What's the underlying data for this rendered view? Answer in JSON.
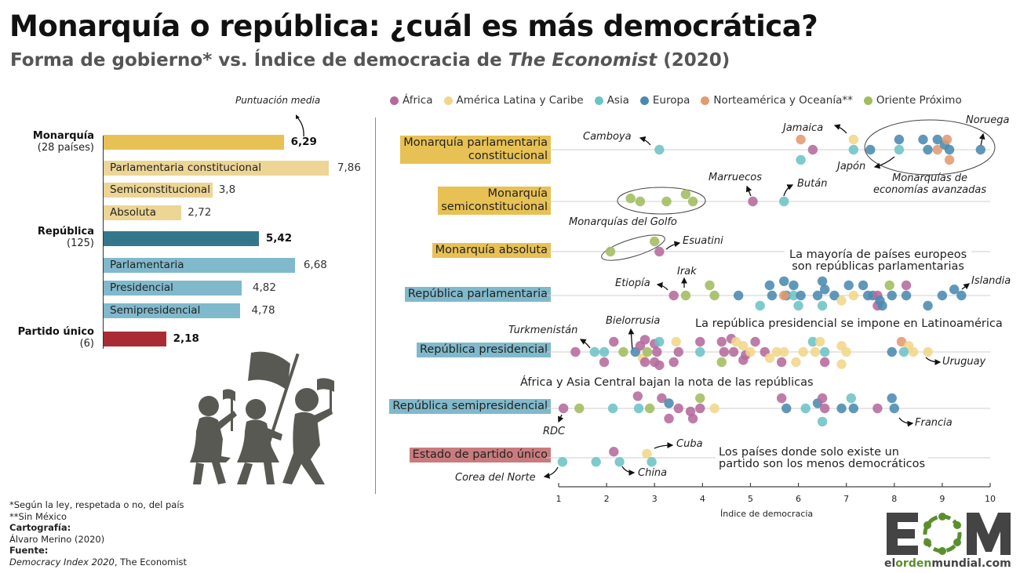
{
  "title": "Monarquía o república: ¿cuál es más democrática?",
  "subtitle": {
    "prefix": "Forma de gobierno* vs. Índice de democracia de ",
    "italic": "The Economist",
    "suffix": " (2020)"
  },
  "colors": {
    "africa": "#b56a9c",
    "latam": "#f1d68a",
    "asia": "#6cc3c5",
    "europa": "#4a8ab0",
    "norteamerica": "#e29a70",
    "oriente": "#a2bc5e",
    "monarchy_main": "#e8c154",
    "monarchy_sub": "#ecd595",
    "republic_main": "#35778a",
    "republic_sub": "#80b9cb",
    "single_party": "#a92c34",
    "single_party_label": "#c97b7d"
  },
  "bar_panel": {
    "annotation": "Puntuación media",
    "groups": [
      {
        "name": "Monarquía",
        "count": "(28 países)"
      },
      {
        "name": "República",
        "count": "(125)"
      },
      {
        "name": "Partido único",
        "count": "(6)"
      }
    ]
  },
  "legend": [
    {
      "key": "africa",
      "label": "África"
    },
    {
      "key": "latam",
      "label": "América Latina y Caribe"
    },
    {
      "key": "asia",
      "label": "Asia"
    },
    {
      "key": "europa",
      "label": "Europa"
    },
    {
      "key": "norteamerica",
      "label": "Norteamérica y Oceanía**"
    },
    {
      "key": "oriente",
      "label": "Oriente Próximo"
    }
  ],
  "row_labels": [
    {
      "line1": "Monarquía parlamentaria",
      "line2": "constitucional"
    },
    {
      "line1": "Monarquía",
      "line2": "semiconstitucional"
    },
    {
      "line1": "Monarquía absoluta",
      "line2": ""
    },
    {
      "line1": "República parlamentaria",
      "line2": ""
    },
    {
      "line1": "República presidencial",
      "line2": ""
    },
    {
      "line1": "República semipresidencial",
      "line2": ""
    },
    {
      "line1": "Estado de partido único",
      "line2": ""
    }
  ],
  "notes": {
    "europe": [
      "La mayoría de países europeos",
      "son repúblicas parlamentarias"
    ],
    "latam": "La república presidencial se impone en Latinoamérica",
    "africa_asia": "África y Asia Central bajan la nota de las repúblicas",
    "single": [
      "Los países donde solo existe un",
      "partido son los menos democráticos"
    ]
  },
  "annotations": {
    "camboya": "Camboya",
    "jamaica": "Jamaica",
    "noruega": "Noruega",
    "japon": "Japón",
    "avanzadas": [
      "Monarquías de",
      "economías avanzadas"
    ],
    "marruecos": "Marruecos",
    "butan": "Bután",
    "golfo": "Monarquías del Golfo",
    "esuatini": "Esuatini",
    "etiopia": "Etiopía",
    "irak": "Irak",
    "islandia": "Islandia",
    "turkmenistan": "Turkmenistán",
    "bielorrusia": "Bielorrusia",
    "uruguay": "Uruguay",
    "rdc": "RDC",
    "francia": "Francia",
    "cuba": "Cuba",
    "china": "China",
    "corea": "Corea del Norte"
  },
  "footer": {
    "note1": "*Según la ley, respetada o no, del país",
    "note2": "**Sin México",
    "carto_label": "Cartografía:",
    "carto_value": "Álvaro Merino (2020)",
    "source_label": "Fuente:",
    "source_italic": "Democracy Index 2020",
    "source_rest": ", The Economist"
  },
  "logo": {
    "letters": [
      "E",
      "M"
    ],
    "url_prefix": "el",
    "url_mid": "orden",
    "url_suffix": "mundial.com"
  },
  "chart_data": [
    {
      "type": "bar",
      "title": "Puntuación media",
      "categories": [
        "Monarquía",
        "Parlamentaria constitucional",
        "Semiconstitucional",
        "Absoluta",
        "República",
        "Parlamentaria",
        "Presidencial",
        "Semipresidencial",
        "Partido único"
      ],
      "values": [
        6.29,
        7.86,
        3.8,
        2.72,
        5.42,
        6.68,
        4.82,
        4.78,
        2.18
      ],
      "value_labels": [
        "6,29",
        "7,86",
        "3,8",
        "2,72",
        "5,42",
        "6,68",
        "4,82",
        "4,78",
        "2,18"
      ],
      "kinds": [
        "main",
        "sub",
        "sub",
        "sub",
        "main",
        "sub",
        "sub",
        "sub",
        "main"
      ],
      "families": [
        "monarchy",
        "monarchy",
        "monarchy",
        "monarchy",
        "republic",
        "republic",
        "republic",
        "republic",
        "single"
      ],
      "xlim": [
        0,
        10
      ]
    },
    {
      "type": "scatter",
      "title": "Índice de democracia por forma de gobierno",
      "xlabel": "Índice de democracia",
      "xlim": [
        1,
        10
      ],
      "xticks": [
        1,
        2,
        3,
        4,
        5,
        6,
        7,
        8,
        9,
        10
      ],
      "rows": [
        {
          "name": "Monarquía parlamentaria constitucional",
          "points": [
            [
              3.1,
              "asia",
              0
            ],
            [
              6.05,
              "norteamerica",
              -1
            ],
            [
              6.3,
              "africa",
              0
            ],
            [
              6.05,
              "asia",
              1
            ],
            [
              7.15,
              "latam",
              -1
            ],
            [
              7.15,
              "asia",
              0
            ],
            [
              7.5,
              "europa",
              0
            ],
            [
              8.1,
              "asia",
              0
            ],
            [
              8.1,
              "europa",
              -1
            ],
            [
              8.6,
              "europa",
              -1
            ],
            [
              8.7,
              "europa",
              0
            ],
            [
              8.9,
              "europa",
              -1
            ],
            [
              8.9,
              "norteamerica",
              0
            ],
            [
              9.05,
              "europa",
              -0.5
            ],
            [
              9.1,
              "norteamerica",
              -1
            ],
            [
              9.15,
              "europa",
              0
            ],
            [
              9.15,
              "norteamerica",
              1
            ],
            [
              9.8,
              "europa",
              0
            ]
          ]
        },
        {
          "name": "Monarquía semiconstitucional",
          "points": [
            [
              2.5,
              "oriente",
              -0.3
            ],
            [
              2.7,
              "oriente",
              0
            ],
            [
              3.25,
              "oriente",
              0
            ],
            [
              3.65,
              "oriente",
              -0.7
            ],
            [
              3.8,
              "oriente",
              0
            ],
            [
              5.05,
              "africa",
              0
            ],
            [
              5.7,
              "asia",
              0
            ]
          ]
        },
        {
          "name": "Monarquía absoluta",
          "points": [
            [
              2.08,
              "oriente",
              0
            ],
            [
              3.0,
              "oriente",
              -1
            ],
            [
              3.1,
              "africa",
              0
            ]
          ]
        },
        {
          "name": "República parlamentaria",
          "points": [
            [
              3.4,
              "africa",
              0
            ],
            [
              3.65,
              "oriente",
              0
            ],
            [
              4.15,
              "oriente",
              -1
            ],
            [
              4.25,
              "oriente",
              0
            ],
            [
              4.75,
              "europa",
              0
            ],
            [
              5.2,
              "asia",
              1
            ],
            [
              5.4,
              "europa",
              -1
            ],
            [
              5.45,
              "europa",
              0
            ],
            [
              5.7,
              "europa",
              -1.4
            ],
            [
              5.75,
              "europa",
              0
            ],
            [
              5.7,
              "norteamerica",
              0
            ],
            [
              5.9,
              "europa",
              -1
            ],
            [
              5.9,
              "asia",
              0
            ],
            [
              6.0,
              "asia",
              1
            ],
            [
              6.05,
              "europa",
              0
            ],
            [
              6.4,
              "europa",
              0
            ],
            [
              6.5,
              "europa",
              -1.4
            ],
            [
              6.55,
              "europa",
              -0.6
            ],
            [
              6.5,
              "asia",
              1
            ],
            [
              6.75,
              "europa",
              0
            ],
            [
              6.9,
              "latam",
              0.5
            ],
            [
              7.15,
              "latam",
              0
            ],
            [
              7.05,
              "europa",
              -1
            ],
            [
              7.35,
              "europa",
              -1
            ],
            [
              7.45,
              "europa",
              0
            ],
            [
              7.65,
              "africa",
              1
            ],
            [
              7.55,
              "europa",
              0
            ],
            [
              7.65,
              "africa",
              0
            ],
            [
              7.7,
              "europa",
              0.5
            ],
            [
              7.75,
              "europa",
              1
            ],
            [
              7.9,
              "oriente",
              -1
            ],
            [
              7.95,
              "europa",
              0
            ],
            [
              8.25,
              "africa",
              -1
            ],
            [
              8.25,
              "europa",
              0
            ],
            [
              8.7,
              "europa",
              1
            ],
            [
              9.0,
              "europa",
              0
            ],
            [
              9.25,
              "europa",
              -0.6
            ],
            [
              9.4,
              "europa",
              0
            ]
          ]
        },
        {
          "name": "República presidencial",
          "points": [
            [
              1.35,
              "africa",
              0
            ],
            [
              1.75,
              "asia",
              0
            ],
            [
              1.95,
              "asia",
              0
            ],
            [
              1.95,
              "africa",
              1
            ],
            [
              2.15,
              "africa",
              -1
            ],
            [
              2.35,
              "oriente",
              0
            ],
            [
              2.6,
              "europa",
              0
            ],
            [
              2.7,
              "africa",
              -0.6
            ],
            [
              2.75,
              "latam",
              0.6
            ],
            [
              2.85,
              "oriente",
              0
            ],
            [
              2.8,
              "africa",
              -1.2
            ],
            [
              2.8,
              "africa",
              1
            ],
            [
              3.0,
              "africa",
              -0.8
            ],
            [
              3.05,
              "africa",
              0
            ],
            [
              3.1,
              "asia",
              -1
            ],
            [
              3.0,
              "africa",
              1
            ],
            [
              3.1,
              "africa",
              1.3
            ],
            [
              3.45,
              "latam",
              -1
            ],
            [
              3.5,
              "africa",
              0
            ],
            [
              3.4,
              "africa",
              1
            ],
            [
              3.95,
              "africa",
              -1
            ],
            [
              3.95,
              "asia",
              0
            ],
            [
              4.4,
              "africa",
              -1
            ],
            [
              4.4,
              "oriente",
              1
            ],
            [
              4.45,
              "africa",
              0
            ],
            [
              4.6,
              "africa",
              -1.3
            ],
            [
              4.85,
              "latam",
              -0.6
            ],
            [
              4.7,
              "latam",
              -1
            ],
            [
              4.9,
              "africa",
              0.3
            ],
            [
              4.65,
              "africa",
              0
            ],
            [
              4.85,
              "africa",
              0.8
            ],
            [
              5.0,
              "latam",
              0
            ],
            [
              5.1,
              "africa",
              -1
            ],
            [
              5.3,
              "africa",
              0
            ],
            [
              5.4,
              "latam",
              0.6
            ],
            [
              5.55,
              "latam",
              0
            ],
            [
              5.7,
              "latam",
              0
            ],
            [
              5.65,
              "africa",
              1
            ],
            [
              5.95,
              "latam",
              1
            ],
            [
              6.1,
              "latam",
              0
            ],
            [
              6.3,
              "asia",
              -1
            ],
            [
              6.45,
              "latam",
              -1
            ],
            [
              6.35,
              "latam",
              0
            ],
            [
              6.55,
              "asia",
              0
            ],
            [
              6.55,
              "africa",
              1
            ],
            [
              6.9,
              "latam",
              -0.6
            ],
            [
              7.0,
              "latam",
              0
            ],
            [
              6.9,
              "latam",
              1.2
            ],
            [
              7.95,
              "europa",
              0
            ],
            [
              8.15,
              "norteamerica",
              -1
            ],
            [
              8.3,
              "latam",
              -0.6
            ],
            [
              8.2,
              "asia",
              0
            ],
            [
              8.4,
              "latam",
              0
            ],
            [
              8.7,
              "latam",
              0
            ]
          ]
        },
        {
          "name": "República semipresidencial",
          "points": [
            [
              1.1,
              "africa",
              0
            ],
            [
              1.43,
              "oriente",
              0
            ],
            [
              2.13,
              "asia",
              0
            ],
            [
              2.65,
              "africa",
              -1.2
            ],
            [
              2.67,
              "asia",
              0
            ],
            [
              2.9,
              "oriente",
              0
            ],
            [
              3.15,
              "africa",
              -1
            ],
            [
              3.3,
              "europa",
              -0.5
            ],
            [
              3.3,
              "africa",
              1
            ],
            [
              3.5,
              "africa",
              0
            ],
            [
              3.75,
              "africa",
              0.3
            ],
            [
              3.8,
              "africa",
              1
            ],
            [
              3.95,
              "oriente",
              -1
            ],
            [
              3.95,
              "africa",
              0
            ],
            [
              4.25,
              "latam",
              0
            ],
            [
              5.65,
              "africa",
              -1
            ],
            [
              5.75,
              "europa",
              0
            ],
            [
              6.15,
              "asia",
              0
            ],
            [
              6.4,
              "europa",
              -0.5
            ],
            [
              6.5,
              "africa",
              -1
            ],
            [
              6.55,
              "africa",
              0
            ],
            [
              6.5,
              "asia",
              1.3
            ],
            [
              6.9,
              "europa",
              0
            ],
            [
              7.1,
              "asia",
              -1
            ],
            [
              7.15,
              "europa",
              0
            ],
            [
              7.65,
              "africa",
              0
            ],
            [
              7.95,
              "europa",
              -1
            ],
            [
              8.0,
              "europa",
              0
            ]
          ]
        },
        {
          "name": "Estado de partido único",
          "points": [
            [
              1.08,
              "asia",
              0.4
            ],
            [
              1.78,
              "asia",
              0.4
            ],
            [
              2.15,
              "africa",
              -0.6
            ],
            [
              2.27,
              "asia",
              0.4
            ],
            [
              2.84,
              "latam",
              -0.4
            ],
            [
              2.94,
              "asia",
              0.4
            ]
          ]
        }
      ]
    }
  ]
}
